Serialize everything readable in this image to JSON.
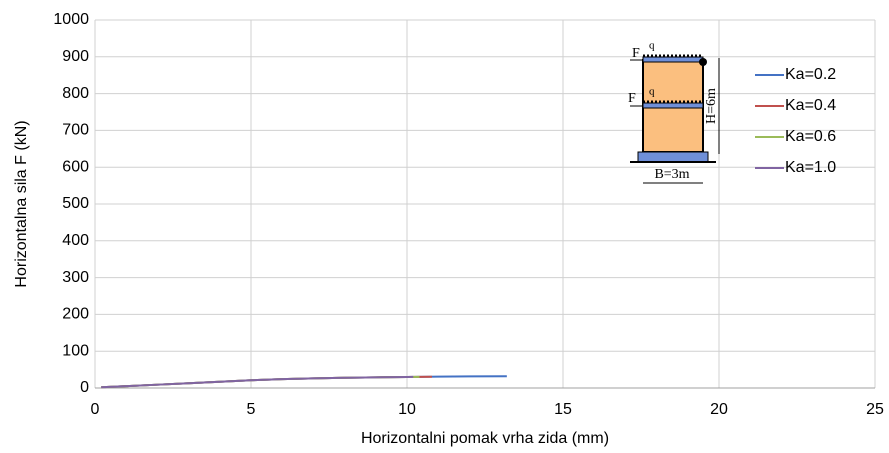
{
  "chart_data": {
    "type": "line",
    "xlabel": "Horizontalni  pomak vrha zida (mm)",
    "ylabel": "Horizontalna  sila F (kN)",
    "xlim": [
      0,
      25
    ],
    "xticks": [
      0,
      5,
      10,
      15,
      20,
      25
    ],
    "ylim": [
      0,
      1000
    ],
    "yticks": [
      0,
      100,
      200,
      300,
      400,
      500,
      600,
      700,
      800,
      900,
      1000
    ],
    "grid": true,
    "legend": "right",
    "annotations": [
      "F",
      "q",
      "F",
      "q",
      "H=6m",
      "B=3m"
    ],
    "series": [
      {
        "name": "Ka=0.2",
        "color": "#4472c4",
        "x": [
          0.2,
          1,
          2,
          3,
          4,
          5,
          6,
          7,
          8,
          9,
          10,
          11,
          12,
          13.2
        ],
        "values": [
          2,
          5,
          9,
          13,
          17,
          21,
          24,
          26,
          28,
          29,
          30,
          31,
          31.5,
          32
        ]
      },
      {
        "name": "Ka=0.4",
        "color": "#c0504d",
        "x": [
          0.2,
          1,
          2,
          3,
          4,
          5,
          6,
          7,
          8,
          9,
          10,
          10.8
        ],
        "values": [
          2,
          5,
          9,
          13,
          17,
          21,
          24,
          26,
          28,
          29,
          30,
          30.5
        ]
      },
      {
        "name": "Ka=0.6",
        "color": "#9bbb59",
        "x": [
          0.2,
          1,
          2,
          3,
          4,
          5,
          6,
          7,
          8,
          9,
          10,
          10.4
        ],
        "values": [
          2,
          5,
          9,
          13,
          17,
          21,
          24,
          26,
          28,
          29,
          30,
          30.3
        ]
      },
      {
        "name": "Ka=1.0",
        "color": "#8064a2",
        "x": [
          0.2,
          1,
          2,
          3,
          4,
          5,
          6,
          7,
          8,
          9,
          10,
          10.2
        ],
        "values": [
          2,
          5,
          9,
          13,
          17,
          21,
          24,
          26,
          28,
          29,
          30,
          30.2
        ]
      }
    ]
  }
}
